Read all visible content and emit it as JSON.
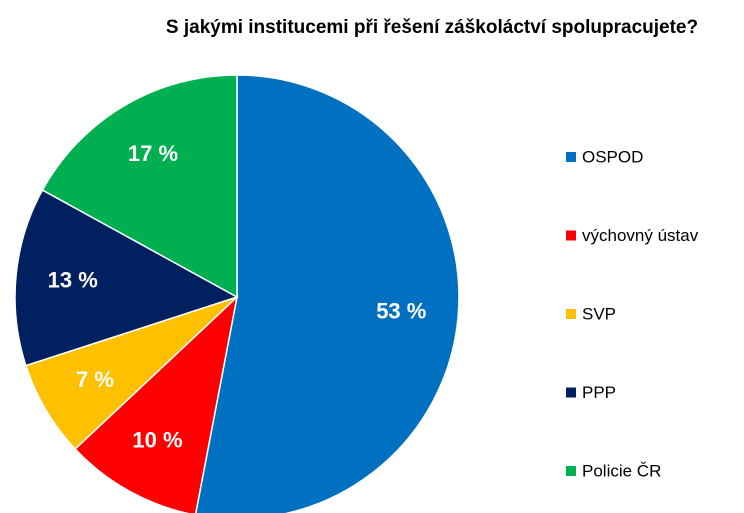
{
  "chart_data": {
    "type": "pie",
    "title": "S jakými institucemi při řešení záškoláctví spolupracujete?",
    "categories": [
      "OSPOD",
      "výchovný ústav",
      "SVP",
      "PPP",
      "Policie ČR"
    ],
    "values": [
      53,
      10,
      7,
      13,
      17
    ],
    "value_labels": [
      "53 %",
      "10 %",
      "7 %",
      "13 %",
      "17 %"
    ],
    "colors": [
      "#0070c0",
      "#ff0000",
      "#ffc000",
      "#002060",
      "#00b050"
    ],
    "legend": "right"
  }
}
